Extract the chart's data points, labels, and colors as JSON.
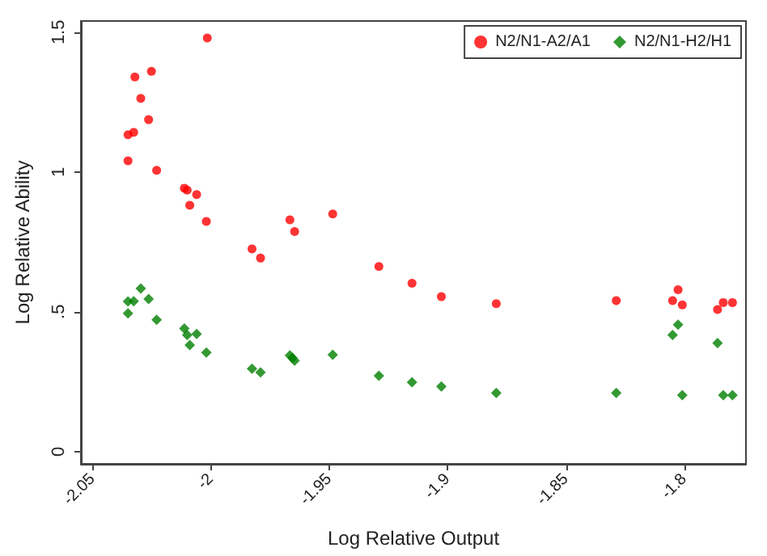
{
  "chart_data": {
    "type": "scatter",
    "xlabel": "Log Relative Output",
    "ylabel": "Log Relative Ability",
    "xlim": [
      -2.055,
      -1.774
    ],
    "xticks": [
      -2.05,
      -2,
      -1.95,
      -1.9,
      -1.85,
      -1.8
    ],
    "ylim": [
      -0.044,
      1.54
    ],
    "yticks": [
      0,
      {
        "value": 0.5,
        "label": ".5"
      },
      1,
      1.5
    ],
    "grid": false,
    "legend": "top right",
    "series": [
      {
        "name": "N2/N1-A2/A1",
        "color": "#ff0000",
        "marker": "circle",
        "x": [
          -2.0351,
          -2.0351,
          -2.0327,
          -2.0322,
          -2.0297,
          -2.0264,
          -2.0252,
          -2.023,
          -2.0113,
          -2.0101,
          -2.009,
          -2.0061,
          -2.002,
          -2.0016,
          -1.9827,
          -1.9791,
          -1.9667,
          -1.9647,
          -1.9486,
          -1.9291,
          -1.9151,
          -1.9027,
          -1.8795,
          -1.8288,
          -1.805,
          -1.8027,
          -1.8009,
          -1.786,
          -1.7836,
          -1.7797
        ],
        "values": [
          1.04,
          1.133,
          1.142,
          1.34,
          1.263,
          1.187,
          1.36,
          1.006,
          0.942,
          0.935,
          0.881,
          0.919,
          0.823,
          1.479,
          0.725,
          0.692,
          0.829,
          0.787,
          0.85,
          0.662,
          0.602,
          0.554,
          0.529,
          0.54,
          0.54,
          0.579,
          0.525,
          0.508,
          0.533,
          0.533
        ]
      },
      {
        "name": "N2/N1-H2/H1",
        "color": "#007f00",
        "marker": "diamond",
        "x": [
          -2.0351,
          -2.0351,
          -2.0327,
          -2.0297,
          -2.0264,
          -2.023,
          -2.0113,
          -2.0101,
          -2.009,
          -2.0061,
          -2.002,
          -1.9827,
          -1.9791,
          -1.9667,
          -1.9656,
          -1.9647,
          -1.9486,
          -1.9291,
          -1.9151,
          -1.9027,
          -1.8795,
          -1.8288,
          -1.805,
          -1.8027,
          -1.8009,
          -1.786,
          -1.7836,
          -1.7797
        ],
        "values": [
          0.494,
          0.537,
          0.538,
          0.583,
          0.546,
          0.471,
          0.44,
          0.417,
          0.381,
          0.421,
          0.354,
          0.296,
          0.283,
          0.344,
          0.335,
          0.325,
          0.346,
          0.271,
          0.248,
          0.233,
          0.21,
          0.21,
          0.417,
          0.454,
          0.202,
          0.388,
          0.202,
          0.202
        ]
      }
    ]
  }
}
